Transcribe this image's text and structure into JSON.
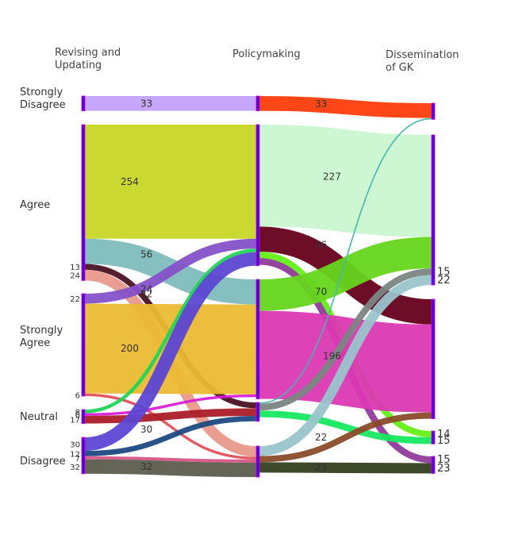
{
  "headers": {
    "col1": "Revising and\nUpdating",
    "col2": "Policymaking",
    "col3": "Dissemination\nof GK"
  },
  "chart_data": {
    "type": "sankey",
    "stages": [
      "Revising and Updating",
      "Policymaking",
      "Dissemination of GK"
    ],
    "categories": [
      "Strongly Disagree",
      "Agree",
      "Strongly Agree",
      "Neutral",
      "Disagree"
    ],
    "category_labels": [
      "Strongly\nDisagree",
      "Agree",
      "Strongly\nAgree",
      "Neutral",
      "Disagree"
    ],
    "flows_stage1_to_stage2": [
      {
        "source": "Strongly Disagree",
        "target": "Strongly Disagree",
        "value": 33,
        "color": "#c3a2fc",
        "label": "33"
      },
      {
        "source": "Agree",
        "target": "Agree",
        "value": 254,
        "color": "#c7d626",
        "label": "254"
      },
      {
        "source": "Agree",
        "target": "Strongly Agree",
        "value": 56,
        "color": "#7fbcbc",
        "label": "56"
      },
      {
        "source": "Agree",
        "target": "Neutral",
        "value": 13,
        "color": "#4a1222",
        "label": "13"
      },
      {
        "source": "Agree",
        "target": "Disagree",
        "value": 24,
        "color": "#e9998c",
        "label": "24"
      },
      {
        "source": "Strongly Agree",
        "target": "Agree",
        "value": 22,
        "color": "#8551c8",
        "label": "22"
      },
      {
        "source": "Strongly Agree",
        "target": "Strongly Agree",
        "value": 200,
        "color": "#ebba33",
        "label": "200"
      },
      {
        "source": "Strongly Agree",
        "target": "Disagree",
        "value": 6,
        "color": "#e0505a",
        "label": "6"
      },
      {
        "source": "Neutral",
        "target": "Agree",
        "value": 8,
        "color": "#22d456",
        "label": "8"
      },
      {
        "source": "Neutral",
        "target": "Strongly Agree",
        "value": 6,
        "color": "#d91ed8",
        "label": "6"
      },
      {
        "source": "Neutral",
        "target": "Neutral",
        "value": 17,
        "color": "#aa1d28",
        "label": "17"
      },
      {
        "source": "Disagree",
        "target": "Agree",
        "value": 30,
        "color": "#5c46d3",
        "label": "30"
      },
      {
        "source": "Disagree",
        "target": "Neutral",
        "value": 12,
        "color": "#1d4a82",
        "label": "12"
      },
      {
        "source": "Disagree",
        "target": "Disagree",
        "value": 7,
        "color": "#d65587",
        "label": "7"
      },
      {
        "source": "Disagree",
        "target": "Disagree",
        "value": 32,
        "color": "#5c5c4e",
        "label": "32"
      }
    ],
    "flows_stage2_to_stage3": [
      {
        "source": "Strongly Disagree",
        "target": "Strongly Disagree",
        "value": 33,
        "color": "#ff3c0a",
        "label": "33"
      },
      {
        "source": "Agree",
        "target": "Agree",
        "value": 227,
        "color": "#c9f7d0",
        "label": "227"
      },
      {
        "source": "Agree",
        "target": "Strongly Agree",
        "value": 56,
        "color": "#65001c",
        "label": "56"
      },
      {
        "source": "Agree",
        "target": "Neutral",
        "value": 14,
        "color": "#66f018",
        "label": "14"
      },
      {
        "source": "Agree",
        "target": "Disagree",
        "value": 15,
        "color": "#8f3c9a",
        "label": "15"
      },
      {
        "source": "Strongly Agree",
        "target": "Agree",
        "value": 70,
        "color": "#66d61d",
        "label": "70"
      },
      {
        "source": "Strongly Agree",
        "target": "Strongly Agree",
        "value": 196,
        "color": "#db38b3",
        "label": "196"
      },
      {
        "source": "Neutral",
        "target": "Strongly Disagree",
        "value": 3,
        "color": "#46b6ae",
        "label": ""
      },
      {
        "source": "Neutral",
        "target": "Agree",
        "value": 15,
        "color": "#7a8683",
        "label": "15"
      },
      {
        "source": "Neutral",
        "target": "Neutral",
        "value": 15,
        "color": "#16e85f",
        "label": "15"
      },
      {
        "source": "Disagree",
        "target": "Agree",
        "value": 22,
        "color": "#99c4cb",
        "label": "22"
      },
      {
        "source": "Disagree",
        "target": "Strongly Agree",
        "value": 14,
        "color": "#8a4c2a",
        "label": ""
      },
      {
        "source": "Disagree",
        "target": "Disagree",
        "value": 23,
        "color": "#333f1f",
        "label": "23"
      }
    ],
    "node_color": "#4b00d6",
    "node_border_color": "#d600d6",
    "legend": "none"
  }
}
